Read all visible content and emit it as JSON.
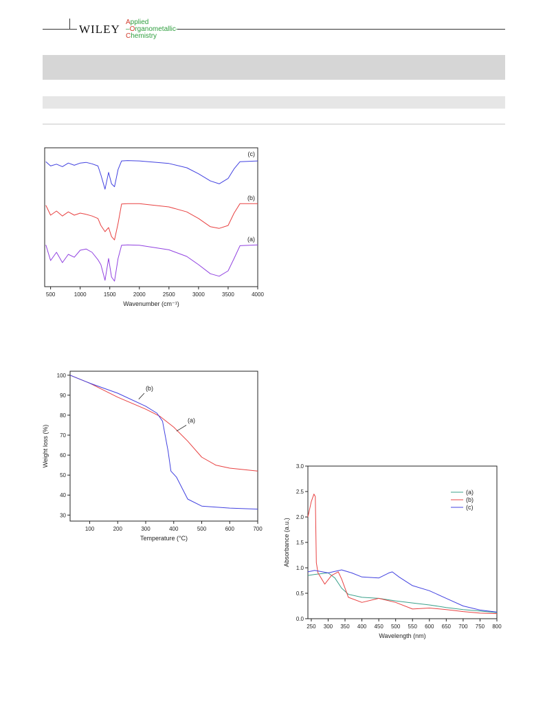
{
  "header": {
    "publisher": "WILEY",
    "journal_lines": [
      {
        "initial": "A",
        "rest": "pplied"
      },
      {
        "initial": "O",
        "rest": "rganometallic"
      },
      {
        "initial": "C",
        "rest": "hemistry"
      }
    ],
    "colors": {
      "initial": "#d03a2a",
      "text": "#2e9e3e"
    }
  },
  "chart_data": [
    {
      "type": "line",
      "xlabel": "Wavenumber (cm⁻¹)",
      "ylabel": "",
      "xlim": [
        400,
        4000
      ],
      "xticks": [
        500,
        1000,
        1500,
        2000,
        2500,
        3000,
        3500,
        4000
      ],
      "y_axis_shown": false,
      "series": [
        {
          "name": "(c)",
          "color": "#4040e0",
          "x": [
            420,
            500,
            600,
            700,
            800,
            900,
            1000,
            1100,
            1200,
            1300,
            1350,
            1420,
            1480,
            1530,
            1580,
            1640,
            1700,
            1800,
            2000,
            2500,
            2800,
            3000,
            3200,
            3350,
            3500,
            3600,
            3700,
            4000
          ],
          "y": [
            0.92,
            0.8,
            0.85,
            0.78,
            0.88,
            0.82,
            0.88,
            0.9,
            0.86,
            0.8,
            0.55,
            0.15,
            0.62,
            0.3,
            0.22,
            0.7,
            0.94,
            0.95,
            0.94,
            0.87,
            0.75,
            0.58,
            0.38,
            0.3,
            0.45,
            0.72,
            0.92,
            0.94
          ]
        },
        {
          "name": "(b)",
          "color": "#e84040",
          "x": [
            420,
            500,
            600,
            700,
            800,
            900,
            1000,
            1100,
            1200,
            1300,
            1350,
            1420,
            1480,
            1530,
            1580,
            1640,
            1700,
            1800,
            2000,
            2500,
            2800,
            3000,
            3200,
            3350,
            3500,
            3600,
            3700,
            4000
          ],
          "y": [
            0.94,
            0.7,
            0.8,
            0.68,
            0.78,
            0.7,
            0.75,
            0.72,
            0.68,
            0.62,
            0.45,
            0.3,
            0.4,
            0.18,
            0.1,
            0.5,
            0.97,
            0.98,
            0.98,
            0.9,
            0.78,
            0.62,
            0.42,
            0.38,
            0.45,
            0.75,
            0.98,
            0.98
          ]
        },
        {
          "name": "(a)",
          "color": "#9040e0",
          "x": [
            420,
            500,
            600,
            700,
            800,
            900,
            1000,
            1100,
            1200,
            1300,
            1350,
            1420,
            1480,
            1530,
            1580,
            1640,
            1700,
            1800,
            2000,
            2500,
            2800,
            3000,
            3200,
            3350,
            3500,
            3600,
            3700,
            4000
          ],
          "y": [
            0.98,
            0.6,
            0.8,
            0.55,
            0.75,
            0.68,
            0.85,
            0.88,
            0.8,
            0.62,
            0.5,
            0.12,
            0.65,
            0.2,
            0.1,
            0.65,
            0.97,
            0.98,
            0.97,
            0.86,
            0.7,
            0.5,
            0.28,
            0.22,
            0.35,
            0.65,
            0.96,
            0.98
          ]
        }
      ]
    },
    {
      "type": "line",
      "xlabel": "Temperature (°C)",
      "ylabel": "Weight loss (%)",
      "xlim": [
        30,
        700
      ],
      "ylim": [
        27,
        102
      ],
      "xticks": [
        100,
        200,
        300,
        400,
        500,
        600,
        700
      ],
      "yticks": [
        30,
        40,
        50,
        60,
        70,
        80,
        90,
        100
      ],
      "series": [
        {
          "name": "(a)",
          "color": "#e84040",
          "x": [
            30,
            100,
            200,
            300,
            350,
            400,
            450,
            500,
            550,
            600,
            700
          ],
          "y": [
            100,
            96,
            89,
            83,
            79.5,
            74,
            67,
            59,
            55,
            53.5,
            52
          ]
        },
        {
          "name": "(b)",
          "color": "#4040e0",
          "x": [
            30,
            100,
            200,
            300,
            340,
            360,
            380,
            390,
            410,
            450,
            500,
            600,
            700
          ],
          "y": [
            100,
            96,
            91,
            84.5,
            81,
            77,
            62,
            52,
            49,
            38,
            34.5,
            33.5,
            33
          ]
        }
      ],
      "annotations": [
        {
          "text": "(a)",
          "x": 440,
          "y": 75
        },
        {
          "text": "(b)",
          "x": 290,
          "y": 91
        }
      ]
    },
    {
      "type": "line",
      "xlabel": "Wavelength (nm)",
      "ylabel": "Absorbance (a.u.)",
      "xlim": [
        240,
        800
      ],
      "ylim": [
        0,
        3.0
      ],
      "xticks": [
        250,
        300,
        350,
        400,
        450,
        500,
        550,
        600,
        650,
        700,
        750,
        800
      ],
      "yticks": [
        0.0,
        0.5,
        1.0,
        1.5,
        2.0,
        2.5,
        3.0
      ],
      "legend": "right",
      "series": [
        {
          "name": "(a)",
          "color": "#3aa08a",
          "x": [
            240,
            260,
            300,
            320,
            340,
            360,
            400,
            450,
            500,
            550,
            600,
            650,
            700,
            750,
            800
          ],
          "y": [
            0.85,
            0.87,
            0.9,
            0.8,
            0.6,
            0.48,
            0.42,
            0.4,
            0.35,
            0.31,
            0.27,
            0.22,
            0.18,
            0.15,
            0.12
          ]
        },
        {
          "name": "(b)",
          "color": "#e84040",
          "x": [
            240,
            250,
            258,
            262,
            265,
            270,
            290,
            310,
            330,
            340,
            360,
            400,
            450,
            500,
            550,
            600,
            650,
            700,
            750,
            800
          ],
          "y": [
            2.0,
            2.3,
            2.45,
            2.4,
            1.1,
            0.9,
            0.68,
            0.85,
            0.92,
            0.78,
            0.42,
            0.32,
            0.4,
            0.32,
            0.19,
            0.21,
            0.18,
            0.14,
            0.11,
            0.1
          ]
        },
        {
          "name": "(c)",
          "color": "#4040e0",
          "x": [
            240,
            260,
            300,
            340,
            370,
            400,
            450,
            480,
            490,
            510,
            550,
            600,
            650,
            700,
            750,
            800
          ],
          "y": [
            0.92,
            0.95,
            0.9,
            0.96,
            0.9,
            0.82,
            0.8,
            0.9,
            0.92,
            0.82,
            0.65,
            0.55,
            0.4,
            0.25,
            0.17,
            0.13
          ]
        }
      ]
    }
  ]
}
